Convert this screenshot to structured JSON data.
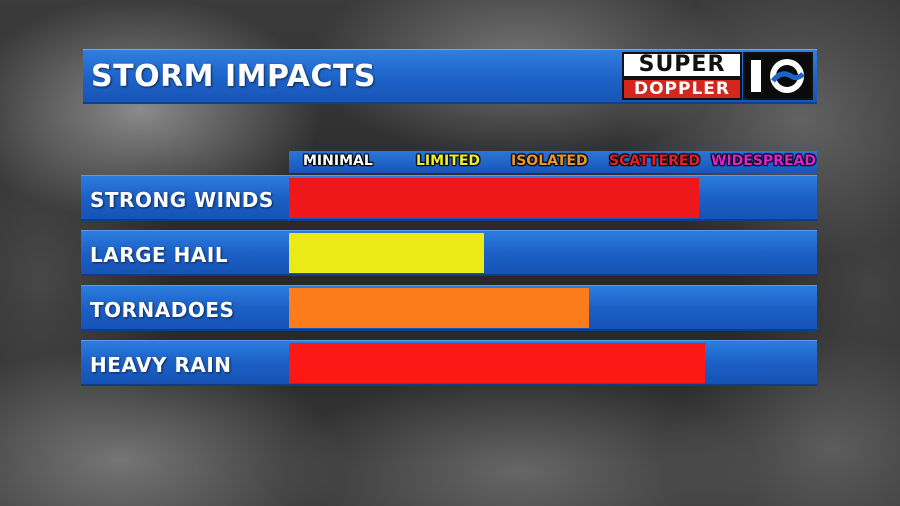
{
  "title": "STORM IMPACTS",
  "logo": {
    "line1": "SUPER",
    "line2": "DOPPLER",
    "mark": "10-wave-icon"
  },
  "scale": [
    {
      "label": "MINIMAL",
      "color": "#ffffff"
    },
    {
      "label": "LIMITED",
      "color": "#f2ee22"
    },
    {
      "label": "ISOLATED",
      "color": "#f5941e"
    },
    {
      "label": "SCATTERED",
      "color": "#ee1c1c"
    },
    {
      "label": "WIDESPREAD",
      "color": "#e020d8"
    }
  ],
  "impacts": [
    {
      "label": "STRONG WINDS",
      "level": 0.78,
      "color": "#f0171a"
    },
    {
      "label": "LARGE HAIL",
      "level": 0.37,
      "color": "#ecea16"
    },
    {
      "label": "TORNADOES",
      "level": 0.57,
      "color": "#fb7c1b"
    },
    {
      "label": "HEAVY RAIN",
      "level": 0.79,
      "color": "#fd1818"
    }
  ]
}
